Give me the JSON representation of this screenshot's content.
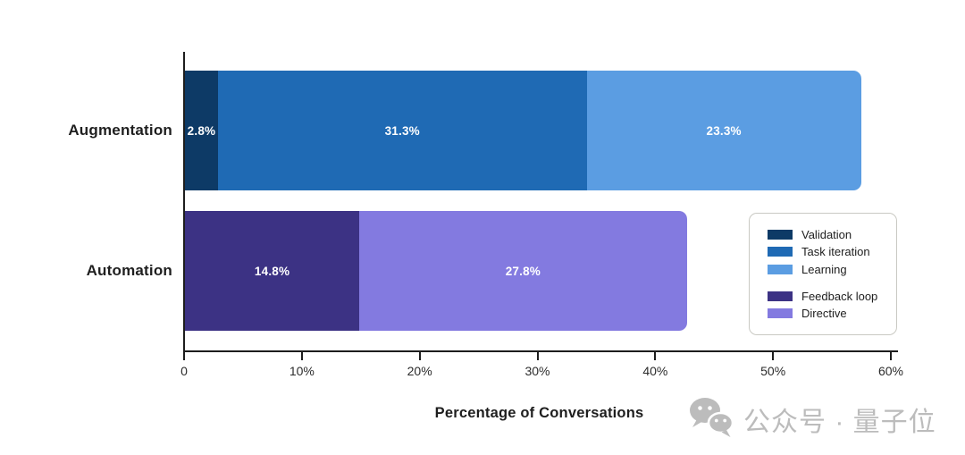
{
  "chart_data": {
    "type": "bar",
    "orientation": "horizontal",
    "stacked": true,
    "xlabel": "Percentage of Conversations",
    "xlim": [
      0,
      60
    ],
    "grid": false,
    "x_ticks": [
      {
        "value": 0,
        "label": "0"
      },
      {
        "value": 10,
        "label": "10%"
      },
      {
        "value": 20,
        "label": "20%"
      },
      {
        "value": 30,
        "label": "30%"
      },
      {
        "value": 40,
        "label": "40%"
      },
      {
        "value": 50,
        "label": "50%"
      },
      {
        "value": 60,
        "label": "60%"
      }
    ],
    "bars": [
      {
        "category": "Augmentation",
        "segments": [
          {
            "name": "Validation",
            "value": 2.8,
            "label": "2.8%",
            "color": "#0D3A66"
          },
          {
            "name": "Task iteration",
            "value": 31.3,
            "label": "31.3%",
            "color": "#1F6AB4"
          },
          {
            "name": "Learning",
            "value": 23.3,
            "label": "23.3%",
            "color": "#5B9DE2"
          }
        ]
      },
      {
        "category": "Automation",
        "segments": [
          {
            "name": "Feedback loop",
            "value": 14.8,
            "label": "14.8%",
            "color": "#3C3284"
          },
          {
            "name": "Directive",
            "value": 27.8,
            "label": "27.8%",
            "color": "#837AE0"
          }
        ]
      }
    ],
    "legend": {
      "position": "right-middle",
      "groups": [
        [
          {
            "label": "Validation",
            "color": "#0D3A66"
          },
          {
            "label": "Task iteration",
            "color": "#1F6AB4"
          },
          {
            "label": "Learning",
            "color": "#5B9DE2"
          }
        ],
        [
          {
            "label": "Feedback loop",
            "color": "#3C3284"
          },
          {
            "label": "Directive",
            "color": "#837AE0"
          }
        ]
      ]
    }
  },
  "watermark": {
    "icon": "wechat-icon",
    "text": "公众号 · 量子位"
  }
}
